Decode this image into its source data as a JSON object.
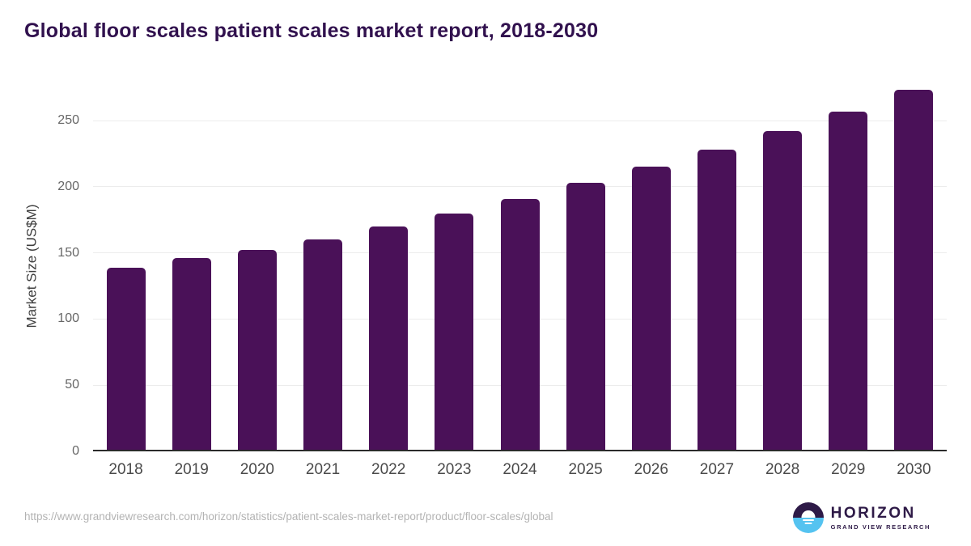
{
  "header": {
    "title": "Global floor scales patient scales market report, 2018-2030"
  },
  "chart_data": {
    "type": "bar",
    "title": "Global floor scales patient scales market report, 2018-2030",
    "categories": [
      "2018",
      "2019",
      "2020",
      "2021",
      "2022",
      "2023",
      "2024",
      "2025",
      "2026",
      "2027",
      "2028",
      "2029",
      "2030"
    ],
    "values": [
      139,
      146,
      152,
      160,
      170,
      180,
      191,
      203,
      215,
      228,
      242,
      257,
      273
    ],
    "xlabel": "",
    "ylabel": "Market Size (US$M)",
    "yticks": [
      0,
      50,
      100,
      150,
      200,
      250
    ],
    "ylim": [
      0,
      280
    ],
    "grid": "horizontal",
    "legend": "none",
    "bar_color": "#4a1158"
  },
  "colors": {
    "bar": "#4a1158",
    "title_text": "#31114e",
    "logo_purple": "#2e1a47",
    "logo_blue": "#55c3f0"
  },
  "footer": {
    "source_url": "https://www.grandviewresearch.com/horizon/statistics/patient-scales-market-report/product/floor-scales/global",
    "logo": {
      "icon": "horizon-logo-icon",
      "name": "HORIZON",
      "tagline": "GRAND VIEW RESEARCH"
    }
  }
}
